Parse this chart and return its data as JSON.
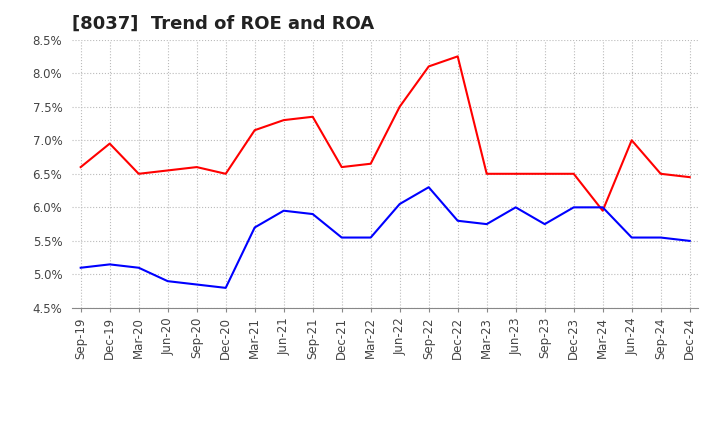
{
  "title": "[8037]  Trend of ROE and ROA",
  "labels": [
    "Sep-19",
    "Dec-19",
    "Mar-20",
    "Jun-20",
    "Sep-20",
    "Dec-20",
    "Mar-21",
    "Jun-21",
    "Sep-21",
    "Dec-21",
    "Mar-22",
    "Jun-22",
    "Sep-22",
    "Dec-22",
    "Mar-23",
    "Jun-23",
    "Sep-23",
    "Dec-23",
    "Mar-24",
    "Jun-24",
    "Sep-24",
    "Dec-24"
  ],
  "roe": [
    6.6,
    6.95,
    6.5,
    6.55,
    6.6,
    6.5,
    7.15,
    7.3,
    7.35,
    6.6,
    6.65,
    7.5,
    8.1,
    8.25,
    6.5,
    6.5,
    6.5,
    6.5,
    5.95,
    7.0,
    6.5,
    6.45
  ],
  "roa": [
    5.1,
    5.15,
    5.1,
    4.9,
    4.85,
    4.8,
    5.7,
    5.95,
    5.9,
    5.55,
    5.55,
    6.05,
    6.3,
    5.8,
    5.75,
    6.0,
    5.75,
    6.0,
    6.0,
    5.55,
    5.55,
    5.5
  ],
  "roe_color": "#ff0000",
  "roa_color": "#0000ff",
  "ylim": [
    4.5,
    8.5
  ],
  "yticks": [
    4.5,
    5.0,
    5.5,
    6.0,
    6.5,
    7.0,
    7.5,
    8.0,
    8.5
  ],
  "background_color": "#ffffff",
  "grid_color": "#bbbbbb",
  "title_fontsize": 13,
  "legend_fontsize": 10,
  "tick_fontsize": 8.5
}
